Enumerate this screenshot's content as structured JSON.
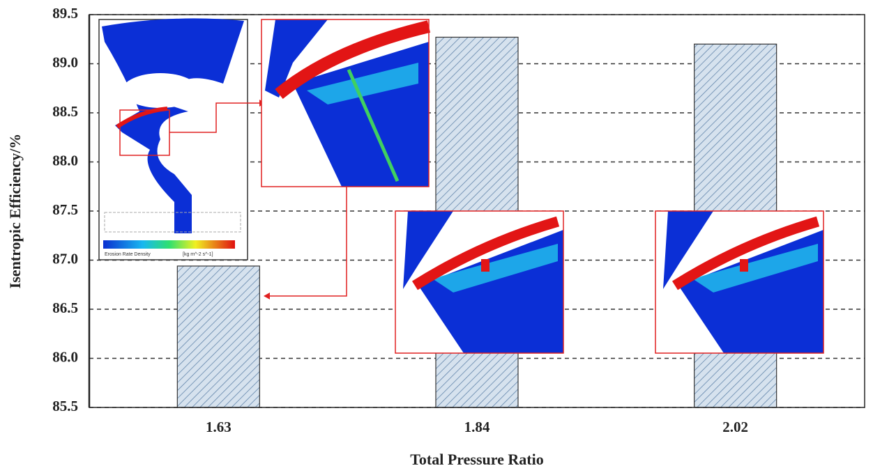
{
  "chart_data": {
    "type": "bar",
    "x_label": "Total Pressure Ratio",
    "y_label": "Isentropic Efficiency/%",
    "categories": [
      "1.63",
      "1.84",
      "2.02"
    ],
    "values": [
      86.94,
      89.27,
      89.2
    ],
    "color": "#d6e2ee",
    "hatch_color": "#5a7fa6",
    "ylim": [
      85.5,
      89.5
    ],
    "yticks": [
      85.5,
      {
        "value": 86,
        "label": "86.0"
      },
      86.5,
      {
        "value": 87,
        "label": "87.0"
      },
      87.5,
      {
        "value": 88,
        "label": "88.0"
      },
      88.5,
      {
        "value": 89,
        "label": "89.0"
      },
      89.5
    ],
    "grid": true,
    "inset_legend": {
      "title": "Erosion Rate Density",
      "unit": "[kg m^-2 s^-1]"
    }
  }
}
